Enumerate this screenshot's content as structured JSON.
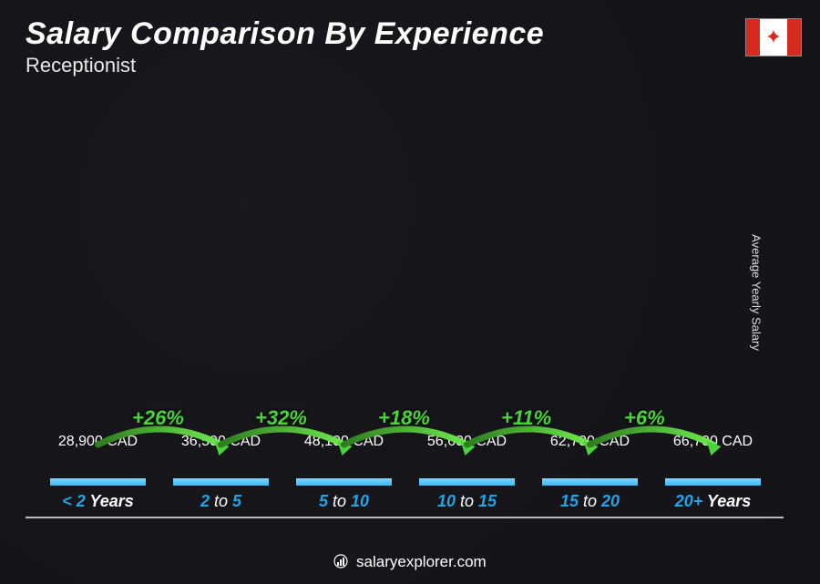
{
  "title": "Salary Comparison By Experience",
  "subtitle": "Receptionist",
  "country_flag": "Canada",
  "y_axis_label": "Average Yearly Salary",
  "footer_text": "salaryexplorer.com",
  "chart": {
    "type": "bar",
    "currency_suffix": " CAD",
    "value_fontsize": 16,
    "title_fontsize": 34,
    "subtitle_fontsize": 22,
    "xlabel_fontsize": 18,
    "change_fontsize": 22,
    "bar_color_bottom": "#0e8fd4",
    "bar_color_top": "#3bb9f5",
    "change_color": "#49d43a",
    "xlabel_color": "#1fa5e8",
    "text_color": "#ffffff",
    "background_color": "#16161a",
    "grid": false,
    "ylim": [
      0,
      70000
    ],
    "bar_width_pct": 78,
    "categories": [
      {
        "key": "< 2",
        "suffix": "Years"
      },
      {
        "key": "2",
        "to": "5"
      },
      {
        "key": "5",
        "to": "10"
      },
      {
        "key": "10",
        "to": "15"
      },
      {
        "key": "15",
        "to": "20"
      },
      {
        "key": "20+",
        "suffix": "Years"
      }
    ],
    "values": [
      28900,
      36500,
      48100,
      56600,
      62700,
      66700
    ],
    "pct_changes": [
      null,
      26,
      32,
      18,
      11,
      6
    ]
  }
}
